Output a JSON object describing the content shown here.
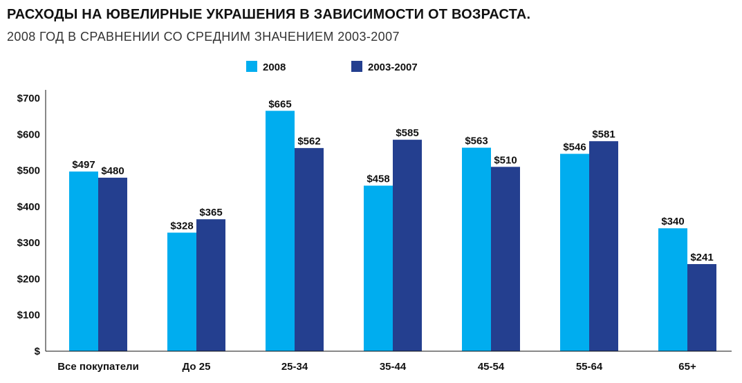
{
  "chart_data": {
    "type": "bar",
    "title": "РАСХОДЫ НА ЮВЕЛИРНЫЕ УКРАШЕНИЯ В ЗАВИСИМОСТИ ОТ ВОЗРАСТА.",
    "subtitle": "2008 ГОД В СРАВНЕНИИ СО СРЕДНИМ ЗНАЧЕНИЕМ 2003-2007",
    "categories": [
      "Все покупатели",
      "До 25",
      "25-34",
      "35-44",
      "45-54",
      "55-64",
      "65+"
    ],
    "series": [
      {
        "name": "2008",
        "color": "#00ADEF",
        "values": [
          497,
          328,
          665,
          458,
          563,
          546,
          340
        ],
        "labels": [
          "$497",
          "$328",
          "$665",
          "$458",
          "$563",
          "$546",
          "$340"
        ]
      },
      {
        "name": "2003-2007",
        "color": "#243F8F",
        "values": [
          480,
          365,
          562,
          585,
          510,
          581,
          241
        ],
        "labels": [
          "$480",
          "$365",
          "$562",
          "$585",
          "$510",
          "$581",
          "$241"
        ]
      }
    ],
    "ylim": [
      0,
      700
    ],
    "yticks": [
      0,
      100,
      200,
      300,
      400,
      500,
      600,
      700
    ],
    "ytick_labels": [
      "$",
      "$100",
      "$200",
      "$300",
      "$400",
      "$500",
      "$600",
      "$700"
    ],
    "grid": false,
    "legend_position": "top-center"
  }
}
